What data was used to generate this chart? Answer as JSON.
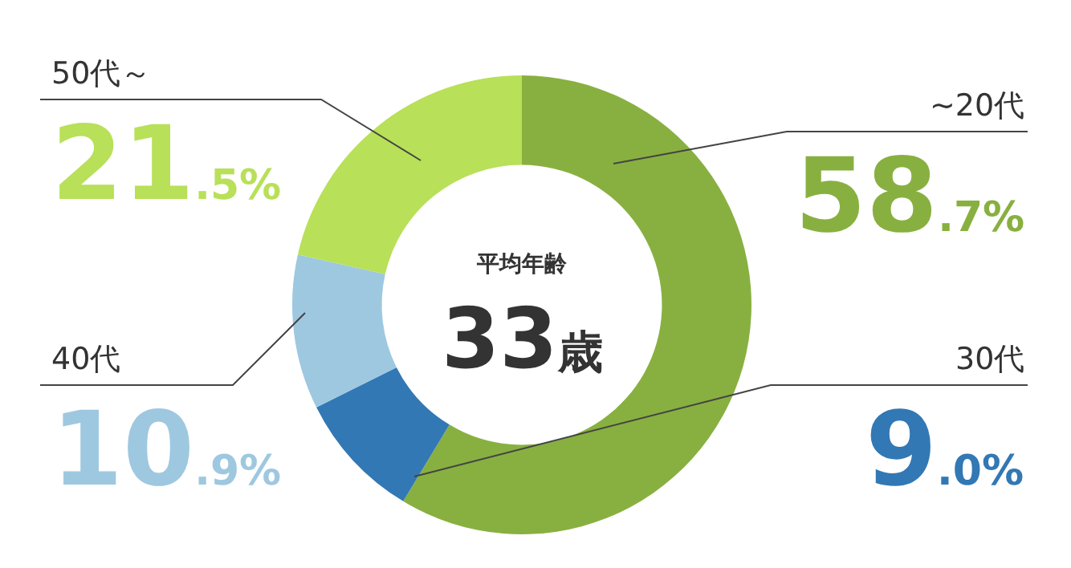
{
  "chart_data": {
    "type": "donut",
    "categories": [
      "~20代",
      "30代",
      "40代",
      "50代～"
    ],
    "values": [
      58.7,
      9.0,
      10.9,
      21.5
    ],
    "colors": [
      "#88b040",
      "#3278b4",
      "#9ec8e0",
      "#b8e058"
    ],
    "value_labels": [
      "58.7%",
      "9.0%",
      "10.9%",
      "21.5%"
    ],
    "annotations": [
      "平均年齢",
      "33歳"
    ],
    "legend": false
  }
}
